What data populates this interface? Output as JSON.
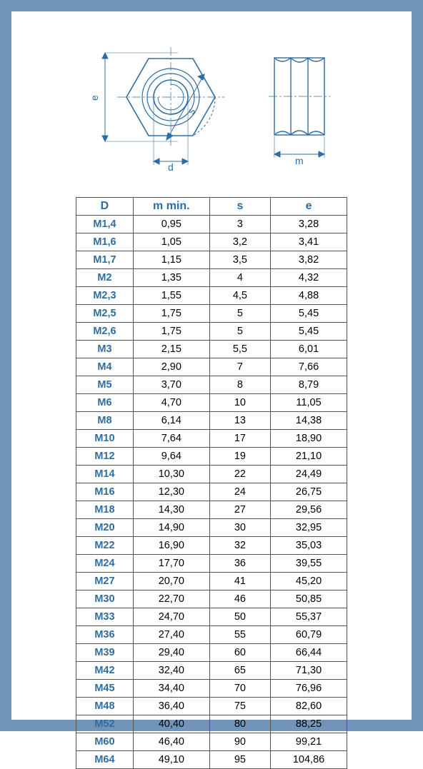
{
  "diagram": {
    "labels": {
      "e": "e",
      "s": "s",
      "d": "d",
      "m": "m"
    },
    "stroke": "#2e6da4",
    "fill": "#d0d8e0",
    "text_color": "#2e6da4"
  },
  "table": {
    "columns": [
      "D",
      "m min.",
      "s",
      "e"
    ],
    "rows": [
      [
        "M1,4",
        "0,95",
        "3",
        "3,28"
      ],
      [
        "M1,6",
        "1,05",
        "3,2",
        "3,41"
      ],
      [
        "M1,7",
        "1,15",
        "3,5",
        "3,82"
      ],
      [
        "M2",
        "1,35",
        "4",
        "4,32"
      ],
      [
        "M2,3",
        "1,55",
        "4,5",
        "4,88"
      ],
      [
        "M2,5",
        "1,75",
        "5",
        "5,45"
      ],
      [
        "M2,6",
        "1,75",
        "5",
        "5,45"
      ],
      [
        "M3",
        "2,15",
        "5,5",
        "6,01"
      ],
      [
        "M4",
        "2,90",
        "7",
        "7,66"
      ],
      [
        "M5",
        "3,70",
        "8",
        "8,79"
      ],
      [
        "M6",
        "4,70",
        "10",
        "11,05"
      ],
      [
        "M8",
        "6,14",
        "13",
        "14,38"
      ],
      [
        "M10",
        "7,64",
        "17",
        "18,90"
      ],
      [
        "M12",
        "9,64",
        "19",
        "21,10"
      ],
      [
        "M14",
        "10,30",
        "22",
        "24,49"
      ],
      [
        "M16",
        "12,30",
        "24",
        "26,75"
      ],
      [
        "M18",
        "14,30",
        "27",
        "29,56"
      ],
      [
        "M20",
        "14,90",
        "30",
        "32,95"
      ],
      [
        "M22",
        "16,90",
        "32",
        "35,03"
      ],
      [
        "M24",
        "17,70",
        "36",
        "39,55"
      ],
      [
        "M27",
        "20,70",
        "41",
        "45,20"
      ],
      [
        "M30",
        "22,70",
        "46",
        "50,85"
      ],
      [
        "M33",
        "24,70",
        "50",
        "55,37"
      ],
      [
        "M36",
        "27,40",
        "55",
        "60,79"
      ],
      [
        "M39",
        "29,40",
        "60",
        "66,44"
      ],
      [
        "M42",
        "32,40",
        "65",
        "71,30"
      ],
      [
        "M45",
        "34,40",
        "70",
        "76,96"
      ],
      [
        "M48",
        "36,40",
        "75",
        "82,60"
      ],
      [
        "M52",
        "40,40",
        "80",
        "88,25"
      ],
      [
        "M60",
        "46,40",
        "90",
        "99,21"
      ],
      [
        "M64",
        "49,10",
        "95",
        "104,86"
      ]
    ],
    "header_color": "#2e6da4",
    "first_col_color": "#2e6da4",
    "border_color": "#555555",
    "font_size": 14.5
  }
}
